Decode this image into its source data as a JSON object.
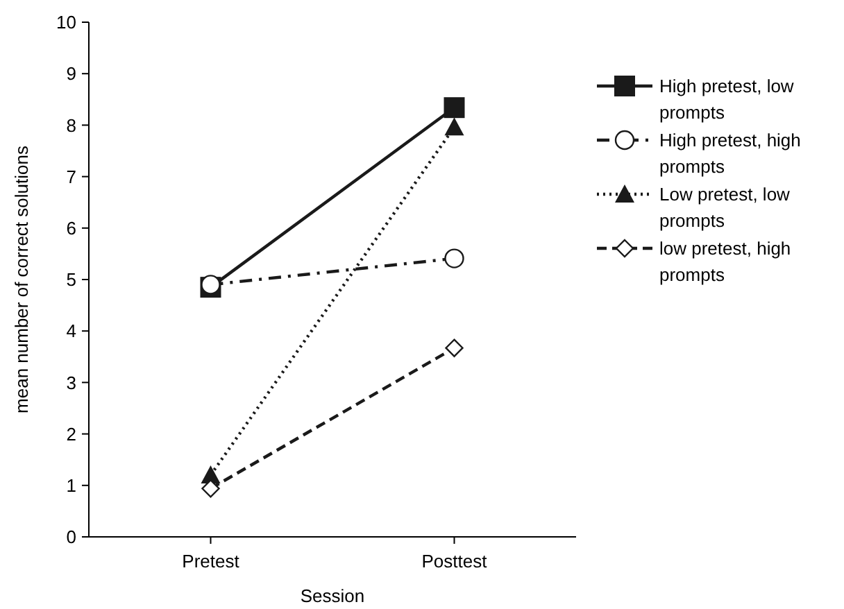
{
  "chart_data": {
    "type": "line",
    "xlabel": "Session",
    "ylabel": "mean number of correct solutions",
    "categories": [
      "Pretest",
      "Posttest"
    ],
    "ylim": [
      0,
      10
    ],
    "yticks": [
      0,
      1,
      2,
      3,
      4,
      5,
      6,
      7,
      8,
      9,
      10
    ],
    "legend": "right",
    "grid": false,
    "series": [
      {
        "name": "High pretest, low prompts",
        "color": "#1a1a1a",
        "values": [
          4.85,
          8.34
        ],
        "marker": "square",
        "line_style": "solid"
      },
      {
        "name": "High pretest, high prompts",
        "color": "#1a1a1a",
        "values": [
          4.9,
          5.41
        ],
        "marker": "circle",
        "line_style": "dashdot"
      },
      {
        "name": "Low pretest, low prompts",
        "color": "#1a1a1a",
        "values": [
          1.2,
          7.96
        ],
        "marker": "triangle",
        "line_style": "dotted"
      },
      {
        "name": "low pretest, high prompts",
        "color": "#1a1a1a",
        "values": [
          0.94,
          3.67
        ],
        "marker": "diamond",
        "line_style": "dashed"
      }
    ]
  }
}
